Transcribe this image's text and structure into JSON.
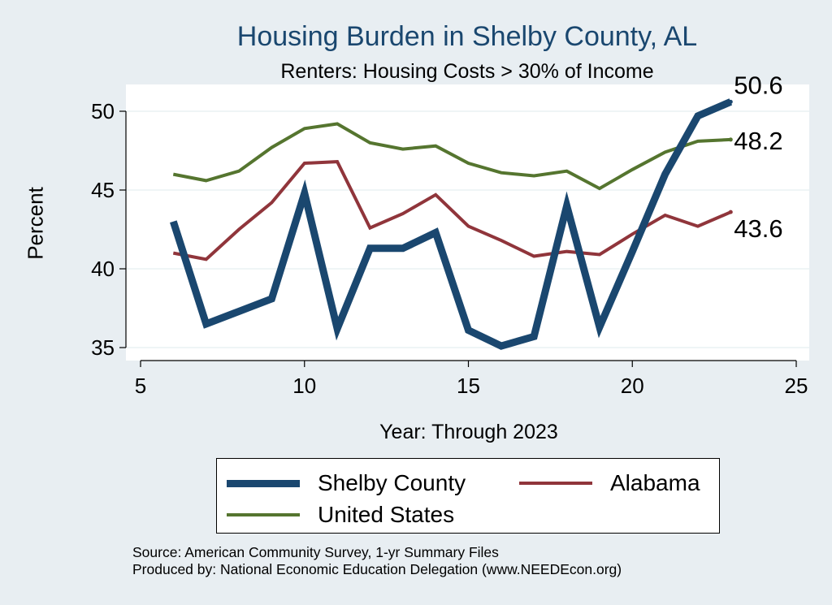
{
  "chart_data": {
    "type": "line",
    "title": "Housing Burden in Shelby County, AL",
    "subtitle": "Renters: Housing Costs > 30% of Income",
    "xlabel": "Year: Through 2023",
    "ylabel": "Percent",
    "xlim": [
      5,
      25
    ],
    "ylim": [
      35,
      51
    ],
    "xticks": [
      5,
      10,
      15,
      20,
      25
    ],
    "yticks": [
      35,
      40,
      45,
      50
    ],
    "grid": true,
    "legend_position": "bottom",
    "x": [
      6,
      7,
      8,
      9,
      10,
      11,
      12,
      13,
      14,
      15,
      16,
      17,
      18,
      19,
      20,
      21,
      22,
      23
    ],
    "series": [
      {
        "name": "Shelby County",
        "color": "#1a476f",
        "stroke": "thick",
        "values": [
          43.0,
          36.5,
          37.3,
          38.1,
          44.8,
          36.2,
          41.3,
          41.3,
          42.3,
          36.1,
          35.1,
          35.7,
          44.0,
          36.3,
          41.1,
          46.0,
          49.7,
          50.6
        ],
        "end_label": "50.6"
      },
      {
        "name": "United States",
        "color": "#55752f",
        "stroke": "thin",
        "values": [
          46.0,
          45.6,
          46.2,
          47.7,
          48.9,
          49.2,
          48.0,
          47.6,
          47.8,
          46.7,
          46.1,
          45.9,
          46.2,
          45.1,
          46.3,
          47.4,
          48.1,
          48.2
        ],
        "end_label": "48.2"
      },
      {
        "name": "Alabama",
        "color": "#90353b",
        "stroke": "thin",
        "values": [
          41.0,
          40.6,
          42.5,
          44.2,
          46.7,
          46.8,
          42.6,
          43.5,
          44.7,
          42.7,
          41.8,
          40.8,
          41.1,
          40.9,
          42.2,
          43.4,
          42.7,
          43.6
        ],
        "end_label": "43.6"
      }
    ]
  },
  "legend": {
    "items": [
      {
        "label": "Shelby County",
        "color": "#1a476f",
        "stroke": "thick"
      },
      {
        "label": "Alabama",
        "color": "#90353b",
        "stroke": "thin"
      },
      {
        "label": "United States",
        "color": "#55752f",
        "stroke": "thin"
      }
    ]
  },
  "footer": {
    "source": "Source: American Community Survey, 1-yr Summary Files",
    "produced_by": "Produced by: National Economic Education Delegation (www.NEEDEcon.org)"
  }
}
